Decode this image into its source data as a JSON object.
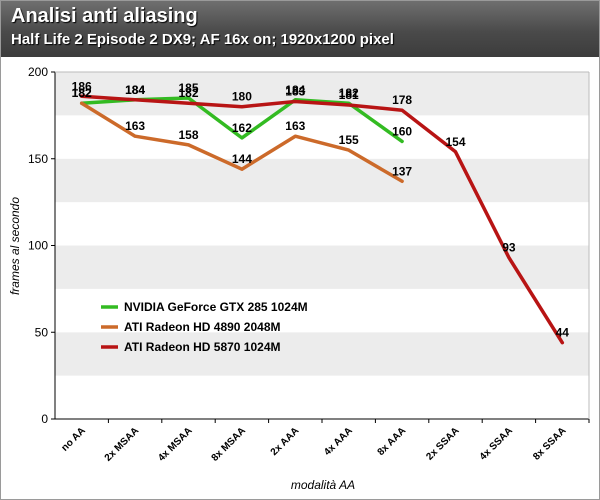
{
  "header": {
    "title": "Analisi anti aliasing",
    "subtitle": "Half Life 2 Episode 2 DX9; AF 16x on; 1920x1200 pixel"
  },
  "chart_data": {
    "type": "line",
    "title": "Analisi anti aliasing",
    "subtitle": "Half Life 2 Episode 2 DX9; AF 16x on; 1920x1200 pixel",
    "xlabel": "modalità AA",
    "ylabel": "frames al secondo",
    "ylim": [
      0,
      200
    ],
    "yticks": [
      0,
      50,
      100,
      150,
      200
    ],
    "grid": "alternating horizontal bands",
    "legend": "left-bottom",
    "categories": [
      "no AA",
      "2x MSAA",
      "4x MSAA",
      "8x MSAA",
      "2x AAA",
      "4x AAA",
      "8x AAA",
      "2x SSAA",
      "4x SSAA",
      "8x SSAA"
    ],
    "series": [
      {
        "name": "NVIDIA GeForce GTX 285 1024M",
        "color": "#33bb22",
        "values": [
          182,
          184,
          185,
          162,
          184,
          182,
          160,
          null,
          null,
          null
        ]
      },
      {
        "name": "ATI Radeon HD 4890 2048M",
        "color": "#cc6a2a",
        "values": [
          182,
          163,
          158,
          144,
          163,
          155,
          137,
          null,
          null,
          null
        ]
      },
      {
        "name": "ATI Radeon HD 5870 1024M",
        "color": "#b81414",
        "values": [
          186,
          184,
          182,
          180,
          183,
          181,
          178,
          154,
          93,
          44
        ]
      }
    ]
  }
}
